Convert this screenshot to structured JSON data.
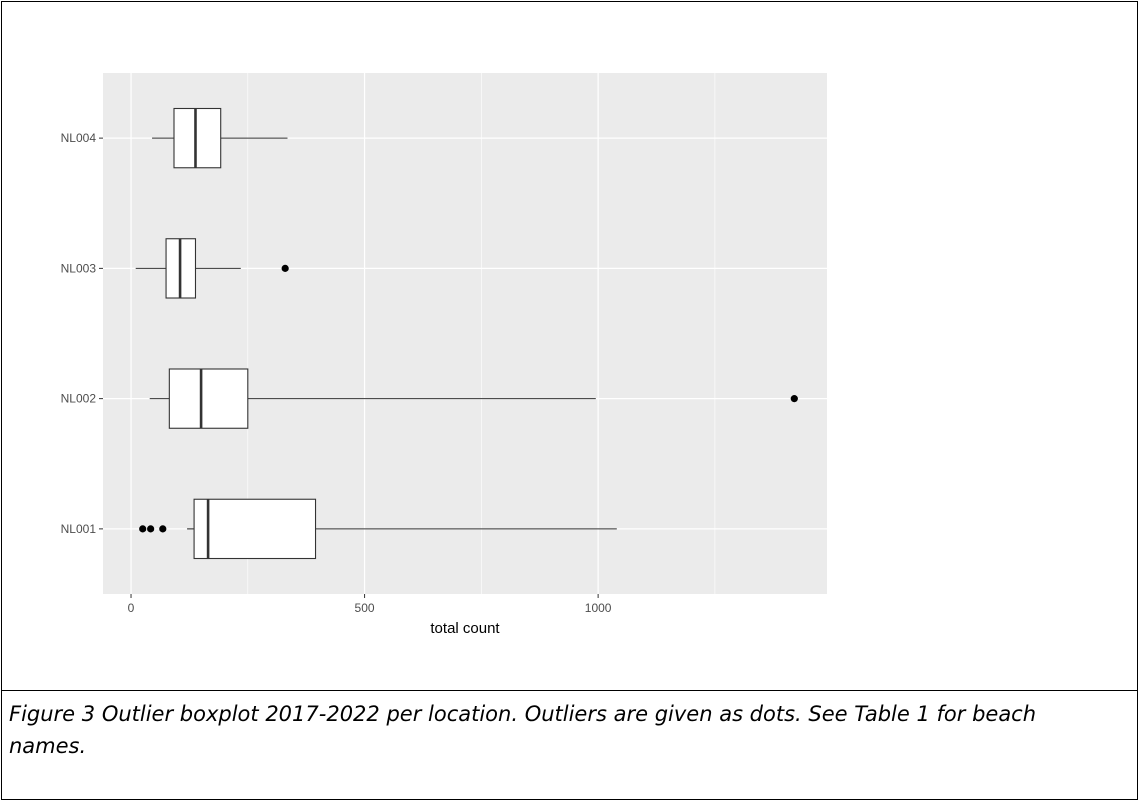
{
  "chart_data": {
    "type": "boxplot",
    "orientation": "horizontal",
    "xlabel": "total count",
    "ylabel": "",
    "xlim": [
      -60,
      1490
    ],
    "x_ticks": [
      0,
      500,
      1000
    ],
    "categories": [
      "NL001",
      "NL002",
      "NL003",
      "NL004"
    ],
    "boxes": [
      {
        "category": "NL001",
        "whisker_low": 120,
        "q1": 135,
        "median": 165,
        "q3": 395,
        "whisker_high": 1040,
        "outliers": [
          25,
          42,
          68
        ]
      },
      {
        "category": "NL002",
        "whisker_low": 40,
        "q1": 82,
        "median": 150,
        "q3": 250,
        "whisker_high": 995,
        "outliers": [
          1420
        ]
      },
      {
        "category": "NL003",
        "whisker_low": 10,
        "q1": 75,
        "median": 105,
        "q3": 138,
        "whisker_high": 235,
        "outliers": [
          330
        ]
      },
      {
        "category": "NL004",
        "whisker_low": 45,
        "q1": 92,
        "median": 138,
        "q3": 192,
        "whisker_high": 335,
        "outliers": []
      }
    ],
    "panel_background": "#ebebeb",
    "grid": true,
    "legend": "none"
  },
  "caption": {
    "text": "Figure 3 Outlier boxplot 2017-2022 per location. Outliers are given as dots. See Table 1 for beach names."
  }
}
